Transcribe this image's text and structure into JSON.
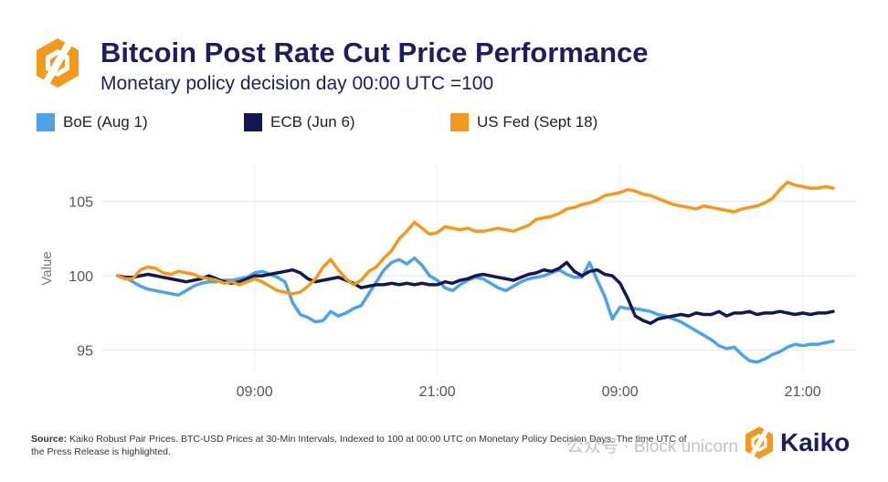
{
  "header": {
    "title": "Bitcoin Post Rate Cut Price Performance",
    "subtitle": "Monetary policy decision day 00:00 UTC =100"
  },
  "footer": {
    "source_label": "Source:",
    "source_text": "Kaiko Robust Pair Prices. BTC-USD Prices at 30-Min Intervals, Indexed to 100 at 00:00 UTC on Monetary Policy Decision Days. The time UTC of the Press Release is highlighted."
  },
  "brand": {
    "name": "Kaiko",
    "color": "#1b1f5e",
    "accent": "#f39a1e"
  },
  "watermark": {
    "text": "公众号 · Block unicorn"
  },
  "chart_data": {
    "type": "line",
    "title": "Bitcoin Post Rate Cut Price Performance",
    "subtitle": "Monetary policy decision day 00:00 UTC =100",
    "ylabel": "Value",
    "xlabel": "",
    "ylim": [
      93.5,
      107.5
    ],
    "xlim": [
      -2,
      97
    ],
    "yticks": [
      95,
      100,
      105
    ],
    "xticks": [
      {
        "x": 18,
        "label": "09:00"
      },
      {
        "x": 42,
        "label": "21:00"
      },
      {
        "x": 66,
        "label": "09:00"
      },
      {
        "x": 90,
        "label": "21:00"
      },
      {
        "x": 114,
        "label": "09:00"
      }
    ],
    "grid": true,
    "legend": "top-left",
    "series": [
      {
        "name": "BoE (Aug 1)",
        "color": "#4da3e8",
        "values": [
          100,
          99.9,
          99.6,
          99.3,
          99.1,
          99,
          98.9,
          98.8,
          98.7,
          99,
          99.3,
          99.5,
          99.6,
          99.6,
          99.7,
          99.7,
          99.8,
          99.9,
          100.2,
          100.3,
          100.1,
          99.9,
          99.6,
          98.2,
          97.4,
          97.2,
          96.9,
          97,
          97.6,
          97.3,
          97.5,
          97.8,
          98,
          98.8,
          99.6,
          100.4,
          100.9,
          101.1,
          100.8,
          101.2,
          100.7,
          100,
          99.7,
          99.2,
          99,
          99.4,
          99.7,
          99.9,
          99.8,
          99.5,
          99.2,
          99,
          99.3,
          99.6,
          99.8,
          99.9,
          100,
          100.2,
          100.4,
          100.1,
          99.9,
          99.9,
          100.9,
          99.7,
          98.6,
          97.1,
          97.9,
          97.8,
          97.8,
          97.7,
          97.6,
          97.4,
          97.3,
          97.1,
          96.9,
          96.6,
          96.3,
          96,
          95.7,
          95.3,
          95.1,
          95.2,
          94.7,
          94.3,
          94.2,
          94.4,
          94.7,
          94.9,
          95.2,
          95.4,
          95.3,
          95.4,
          95.4,
          95.5,
          95.6
        ]
      },
      {
        "name": "ECB (Jun 6)",
        "color": "#141850",
        "values": [
          100,
          99.9,
          99.9,
          100,
          100.1,
          100,
          99.9,
          99.8,
          99.7,
          99.6,
          99.7,
          99.8,
          100,
          99.8,
          99.6,
          99.5,
          99.6,
          99.8,
          100,
          100,
          100.1,
          100.2,
          100.3,
          100.4,
          100.2,
          99.8,
          99.6,
          99.7,
          99.8,
          99.9,
          99.7,
          99.5,
          99.2,
          99.3,
          99.4,
          99.4,
          99.5,
          99.4,
          99.5,
          99.4,
          99.5,
          99.4,
          99.4,
          99.6,
          99.5,
          99.7,
          99.8,
          100,
          100.1,
          100,
          99.9,
          99.8,
          99.7,
          99.9,
          100.1,
          100.2,
          100.4,
          100.3,
          100.5,
          100.9,
          100.3,
          100,
          100.3,
          100.4,
          100.1,
          100,
          99.5,
          98.5,
          97.3,
          97,
          96.8,
          97.1,
          97.2,
          97.3,
          97.4,
          97.3,
          97.5,
          97.4,
          97.4,
          97.6,
          97.3,
          97.5,
          97.5,
          97.6,
          97.4,
          97.5,
          97.5,
          97.6,
          97.5,
          97.4,
          97.5,
          97.4,
          97.5,
          97.5,
          97.6
        ]
      },
      {
        "name": "US Fed (Sept 18)",
        "color": "#f39a1e",
        "values": [
          100,
          99.8,
          99.8,
          100.4,
          100.6,
          100.5,
          100.2,
          100.1,
          100.3,
          100.2,
          100.1,
          99.9,
          99.8,
          99.7,
          99.5,
          99.6,
          99.4,
          99.6,
          99.8,
          99.6,
          99.3,
          99,
          98.9,
          98.8,
          98.9,
          99.3,
          99.8,
          100.6,
          101.1,
          100.4,
          99.8,
          99.4,
          99.7,
          100.3,
          100.6,
          101.2,
          101.7,
          102.5,
          103,
          103.6,
          103.2,
          102.8,
          102.9,
          103.3,
          103.2,
          103.1,
          103.2,
          103,
          103,
          103.1,
          103.2,
          103.1,
          103,
          103.2,
          103.4,
          103.8,
          103.9,
          104,
          104.2,
          104.5,
          104.6,
          104.8,
          104.9,
          105.1,
          105.4,
          105.5,
          105.6,
          105.8,
          105.7,
          105.5,
          105.4,
          105.2,
          105,
          104.8,
          104.7,
          104.6,
          104.5,
          104.7,
          104.6,
          104.5,
          104.4,
          104.3,
          104.5,
          104.6,
          104.7,
          104.9,
          105.2,
          105.8,
          106.3,
          106.1,
          106,
          105.9,
          105.9,
          106,
          105.9
        ]
      }
    ]
  }
}
